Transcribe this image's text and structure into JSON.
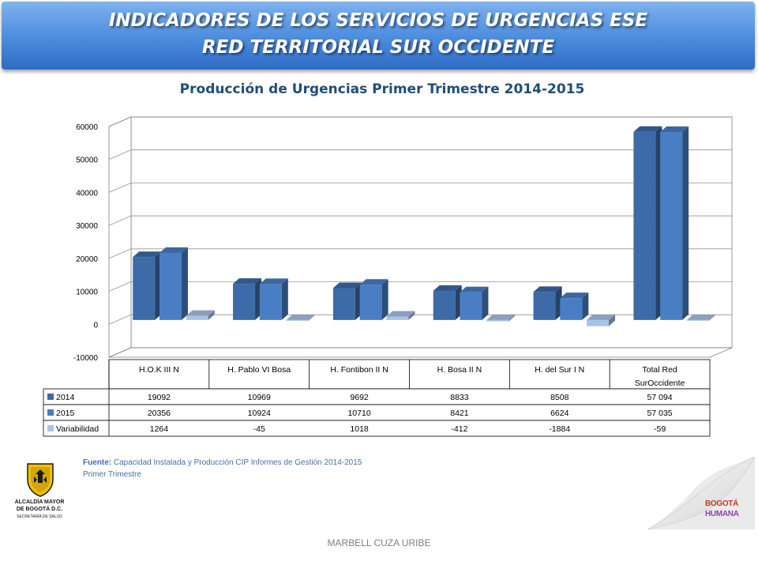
{
  "header": {
    "line1": "INDICADORES DE LOS SERVICIOS DE URGENCIAS ESE",
    "line2": "RED TERRITORIAL SUR OCCIDENTE"
  },
  "chart_data": {
    "type": "bar",
    "title": "Producción de Urgencias Primer Trimestre 2014-2015",
    "xlabel": "",
    "ylabel": "",
    "ylim": [
      -10000,
      60000
    ],
    "yticks": [
      "60000",
      "50000",
      "40000",
      "30000",
      "20000",
      "10000",
      "0",
      "-10000"
    ],
    "ytick_values": [
      60000,
      50000,
      40000,
      30000,
      20000,
      10000,
      0,
      -10000
    ],
    "grid": true,
    "legend": "data-table",
    "categories": [
      "H.O.K III N",
      "H. Pablo VI Bosa",
      "H. Fontibon II N",
      "H. Bosa II N",
      "H. del Sur I N",
      "Total Red SurOccidente"
    ],
    "category_lines": [
      [
        "H.O.K III N"
      ],
      [
        "H. Pablo VI Bosa"
      ],
      [
        "H. Fontibon II N"
      ],
      [
        "H. Bosa II N"
      ],
      [
        "H. del Sur I N"
      ],
      [
        "Total Red",
        "SurOccidente"
      ]
    ],
    "series": [
      {
        "name": "2014",
        "color": "#3d6ba8",
        "values": [
          19092,
          10969,
          9692,
          8833,
          8508,
          57094
        ],
        "labels": [
          "19092",
          "10969",
          "9692",
          "8833",
          "8508",
          "57 094"
        ]
      },
      {
        "name": "2015",
        "color": "#4a7ec4",
        "values": [
          20356,
          10924,
          10710,
          8421,
          6624,
          57035
        ],
        "labels": [
          "20356",
          "10924",
          "10710",
          "8421",
          "6624",
          "57 035"
        ]
      },
      {
        "name": "Variabilidad",
        "color": "#a9c3e6",
        "values": [
          1264,
          -45,
          1018,
          -412,
          -1884,
          -59
        ],
        "labels": [
          "1264",
          "-45",
          "1018",
          "-412",
          "-1884",
          "-59"
        ]
      }
    ]
  },
  "source": {
    "label": "Fuente:",
    "text": "Capacidad Instalada y Producción CIP Informes de Gestión 2014-2015",
    "line2": "Primer Trimestre"
  },
  "logo_left": {
    "line1": "ALCALDÍA MAYOR",
    "line2": "DE BOGOTÁ D.C.",
    "line3": "SECRETARÍA DE SALUD"
  },
  "logo_right": {
    "line1": "BOGOTÁ",
    "line2": "HUMANA"
  },
  "footer": "MARBELL CUZA URIBE"
}
